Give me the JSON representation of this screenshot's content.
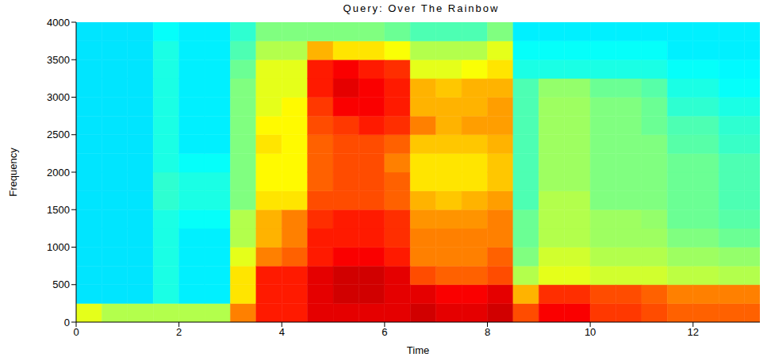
{
  "chart_data": {
    "type": "heatmap",
    "title": "Query: Over The Rainbow",
    "x_label": "Time",
    "y_label": "Frequency",
    "xlim": [
      0,
      13.3
    ],
    "xticks": [
      0,
      2,
      4,
      6,
      8,
      10,
      12
    ],
    "ylim": [
      0,
      4000
    ],
    "yticks": [
      0,
      500,
      1000,
      1500,
      2000,
      2500,
      3000,
      3500,
      4000
    ],
    "time_edges": [
      0,
      0.5,
      1,
      1.5,
      2,
      2.5,
      3,
      3.5,
      4,
      4.5,
      5,
      5.5,
      6,
      6.5,
      7,
      7.5,
      8,
      8.5,
      9,
      9.5,
      10,
      10.5,
      11,
      11.5,
      12,
      12.5,
      13,
      13.5
    ],
    "freq_edges": [
      0,
      250,
      500,
      750,
      1000,
      1250,
      1500,
      1750,
      2000,
      2250,
      2500,
      2750,
      3000,
      3250,
      3500,
      3750,
      4000
    ],
    "color_range": [
      0,
      10
    ],
    "cells": [
      [
        6,
        3.5,
        3.5,
        3.5,
        3.5,
        3.5,
        3.5,
        3.5,
        3.5,
        3.5,
        3.5,
        3.5,
        3.5,
        3.5,
        3.5,
        3.5
      ],
      [
        5.5,
        3.5,
        3.5,
        3.5,
        3.5,
        3.5,
        3.5,
        3.5,
        3.5,
        3.5,
        3.5,
        3.5,
        3.5,
        3.5,
        3.5,
        3.5
      ],
      [
        5.5,
        3.5,
        3.5,
        3.5,
        3.5,
        3.5,
        3.5,
        3.5,
        3.5,
        3.5,
        3.5,
        3.5,
        3.5,
        3.5,
        3.5,
        3.5
      ],
      [
        5.5,
        4,
        4,
        4,
        4,
        4,
        4.2,
        4.2,
        4,
        4,
        4,
        4,
        4,
        4,
        4,
        3.8
      ],
      [
        5.5,
        3.6,
        3.6,
        3.6,
        3.6,
        3.8,
        4,
        4,
        3.8,
        3.6,
        3.6,
        3.6,
        3.6,
        3.6,
        3.6,
        3.6
      ],
      [
        5.5,
        3.6,
        3.6,
        3.6,
        3.6,
        3.8,
        4,
        4,
        3.8,
        3.6,
        3.6,
        3.6,
        3.6,
        3.6,
        3.6,
        3.6
      ],
      [
        7.5,
        6.5,
        6.5,
        6,
        5.5,
        5.5,
        5,
        5,
        5,
        5,
        5,
        5,
        5,
        4.8,
        4.5,
        4.2
      ],
      [
        8.5,
        8.5,
        8.5,
        7.5,
        7,
        7,
        6.5,
        6.3,
        6.3,
        6.5,
        6.3,
        6,
        6,
        6,
        5.5,
        5
      ],
      [
        8.5,
        8.5,
        8.5,
        7.8,
        7.5,
        7.5,
        6.5,
        6.3,
        6.3,
        6.3,
        6.3,
        6.3,
        6,
        6,
        5.5,
        5
      ],
      [
        9,
        9,
        9,
        8.5,
        8.5,
        8.3,
        8,
        7.8,
        7.8,
        7.8,
        8,
        8.2,
        8.5,
        8.5,
        7,
        5
      ],
      [
        9,
        9.2,
        9.2,
        8.8,
        8.5,
        8.5,
        8,
        8,
        8,
        8,
        8.2,
        8.8,
        9,
        8.8,
        6.5,
        5
      ],
      [
        9,
        9.2,
        9.2,
        8.8,
        8.5,
        8.5,
        8,
        8,
        8,
        8,
        8.5,
        8.8,
        8.8,
        8.5,
        6.5,
        5
      ],
      [
        9,
        9,
        9,
        8.5,
        8.3,
        8.3,
        7.8,
        7.8,
        7.5,
        7.8,
        8.3,
        8.5,
        8.5,
        8.3,
        6.2,
        4.8
      ],
      [
        9.2,
        9,
        8,
        7.5,
        7.5,
        7.3,
        7,
        6.5,
        6.5,
        6.8,
        7.5,
        7,
        7,
        6,
        5.5,
        4.5
      ],
      [
        9,
        8.8,
        7.8,
        7.5,
        7.5,
        7.3,
        6.8,
        6.5,
        6.5,
        6.8,
        7,
        7,
        6.8,
        6,
        5.5,
        4.5
      ],
      [
        9,
        8.8,
        7.8,
        7.5,
        7.5,
        7.3,
        7,
        6.5,
        6.5,
        6.8,
        7.2,
        7,
        7,
        6.2,
        5.5,
        4.5
      ],
      [
        9.2,
        9,
        8,
        7.8,
        7.5,
        7.5,
        7.2,
        6.8,
        6.8,
        7,
        7.2,
        7.2,
        7,
        6.5,
        6,
        5
      ],
      [
        8,
        7,
        5.5,
        5,
        4.8,
        4.8,
        4.5,
        4.5,
        4.5,
        4.5,
        4.5,
        4.5,
        4.5,
        4,
        3.8,
        3.6
      ],
      [
        8.8,
        8.3,
        6,
        5.8,
        5.5,
        5.5,
        5.5,
        5.3,
        5.3,
        5.3,
        5.3,
        5.3,
        5.2,
        4,
        3.8,
        3.6
      ],
      [
        8.8,
        8.3,
        6,
        5.8,
        5.5,
        5.5,
        5.5,
        5.3,
        5.3,
        5.3,
        5.3,
        5.3,
        5.2,
        4,
        3.8,
        3.6
      ],
      [
        8.2,
        8,
        5.8,
        5.5,
        5.3,
        5.3,
        5,
        5,
        5,
        5,
        5,
        5,
        4.8,
        4,
        3.8,
        3.6
      ],
      [
        8.2,
        8,
        5.8,
        5.5,
        5.3,
        5.3,
        5,
        5,
        5,
        5,
        5,
        5,
        4.8,
        4,
        3.8,
        3.6
      ],
      [
        8,
        7.8,
        5.8,
        5.5,
        5.3,
        5.2,
        5,
        5,
        5,
        5,
        4.8,
        4.8,
        4.6,
        4,
        3.8,
        3.6
      ],
      [
        7.8,
        7.5,
        5.6,
        5.3,
        5,
        4.8,
        4.8,
        4.8,
        4.8,
        4.6,
        4.5,
        4.2,
        4,
        3.8,
        3.6,
        3.6
      ],
      [
        7.8,
        7.5,
        5.6,
        5.3,
        5,
        4.8,
        4.8,
        4.8,
        4.8,
        4.6,
        4.5,
        4.2,
        4,
        3.8,
        3.6,
        3.6
      ],
      [
        7.8,
        7.5,
        5.5,
        5.2,
        4.8,
        4.6,
        4.5,
        4.5,
        4.5,
        4.3,
        4.2,
        4,
        3.8,
        3.7,
        3.6,
        3.6
      ],
      [
        7.8,
        7.5,
        5.5,
        5.2,
        4.8,
        4.6,
        4.5,
        4.5,
        4.5,
        4.3,
        4.2,
        4,
        3.8,
        3.7,
        3.6,
        3.6
      ]
    ]
  }
}
